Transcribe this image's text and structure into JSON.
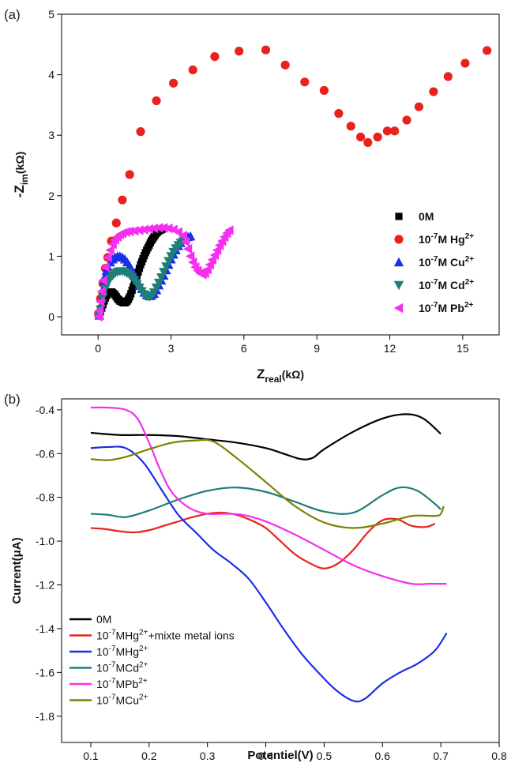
{
  "chart_data": [
    {
      "panel_label": "(a)",
      "type": "scatter",
      "xlabel": {
        "main": "Z",
        "sub": "real",
        "unit": "(kΩ)"
      },
      "ylabel": {
        "main": "-Z",
        "sub": "im",
        "unit": "(kΩ)"
      },
      "xlim": [
        -1.5,
        16.5
      ],
      "ylim": [
        -0.3,
        5
      ],
      "xticks": [
        "0",
        "3",
        "6",
        "9",
        "12",
        "15"
      ],
      "xtick_values": [
        0,
        3,
        6,
        9,
        12,
        15
      ],
      "yticks": [
        "0",
        "1",
        "2",
        "3",
        "4",
        "5"
      ],
      "ytick_values": [
        0,
        1,
        2,
        3,
        4,
        5
      ],
      "legend_position": "center-right",
      "series": [
        {
          "name": "0M",
          "name_prefix": "0M",
          "name_sup": "",
          "name_suffix": "",
          "marker": "square",
          "color": "#000000",
          "x": [
            0.05,
            0.1,
            0.15,
            0.2,
            0.25,
            0.3,
            0.35,
            0.4,
            0.45,
            0.5,
            0.55,
            0.6,
            0.65,
            0.7,
            0.75,
            0.8,
            0.85,
            0.9,
            0.95,
            1.0,
            1.05,
            1.1,
            1.15,
            1.2,
            1.25,
            1.3,
            1.35,
            1.4,
            1.45,
            1.5,
            1.55,
            1.6,
            1.65,
            1.7,
            1.75,
            1.8,
            1.85,
            1.9,
            1.95,
            2.0,
            2.05,
            2.1,
            2.15,
            2.2,
            2.25,
            2.3,
            2.35,
            2.4,
            2.45,
            2.5,
            2.55,
            2.6,
            2.65
          ],
          "y": [
            0.02,
            0.08,
            0.14,
            0.2,
            0.26,
            0.31,
            0.35,
            0.38,
            0.4,
            0.41,
            0.41,
            0.4,
            0.38,
            0.36,
            0.33,
            0.3,
            0.28,
            0.26,
            0.25,
            0.24,
            0.23,
            0.23,
            0.24,
            0.26,
            0.29,
            0.33,
            0.38,
            0.44,
            0.5,
            0.56,
            0.62,
            0.68,
            0.74,
            0.8,
            0.86,
            0.91,
            0.96,
            1.01,
            1.06,
            1.1,
            1.14,
            1.18,
            1.22,
            1.26,
            1.29,
            1.32,
            1.35,
            1.38,
            1.4,
            1.42,
            1.43,
            1.44,
            1.45
          ]
        },
        {
          "name": "10-7M Hg2+",
          "name_prefix": "10",
          "name_sup": "-7",
          "name_suffix": "M Hg",
          "name_sup2": "2+",
          "marker": "circle",
          "color": "#e8231d",
          "x": [
            0.02,
            0.1,
            0.2,
            0.3,
            0.4,
            0.55,
            0.75,
            1.0,
            1.3,
            1.75,
            2.4,
            3.1,
            3.9,
            4.8,
            5.8,
            6.9,
            7.7,
            8.5,
            9.3,
            9.9,
            10.4,
            10.8,
            11.1,
            11.5,
            11.9,
            12.2,
            12.7,
            13.2,
            13.8,
            14.4,
            15.1,
            16.0
          ],
          "y": [
            0.05,
            0.3,
            0.55,
            0.8,
            0.98,
            1.25,
            1.55,
            1.93,
            2.35,
            3.06,
            3.57,
            3.86,
            4.08,
            4.3,
            4.39,
            4.41,
            4.16,
            3.88,
            3.74,
            3.36,
            3.15,
            2.97,
            2.88,
            2.97,
            3.07,
            3.07,
            3.25,
            3.47,
            3.72,
            3.97,
            4.19,
            4.4
          ]
        },
        {
          "name": "10-7M Cu2+",
          "name_prefix": "10",
          "name_sup": "-7",
          "name_suffix": "M Cu",
          "name_sup2": "2+",
          "marker": "triangle-up",
          "color": "#1a2fe8",
          "x": [
            0.05,
            0.1,
            0.15,
            0.2,
            0.25,
            0.3,
            0.35,
            0.4,
            0.5,
            0.6,
            0.7,
            0.8,
            0.9,
            1.0,
            1.1,
            1.2,
            1.3,
            1.4,
            1.5,
            1.6,
            1.7,
            1.8,
            1.9,
            2.0,
            2.1,
            2.2,
            2.3,
            2.4,
            2.5,
            2.6,
            2.7,
            2.8,
            2.9,
            3.0,
            3.1,
            3.2,
            3.3,
            3.4,
            3.5,
            3.6,
            3.7,
            3.8
          ],
          "y": [
            0.02,
            0.15,
            0.3,
            0.45,
            0.58,
            0.68,
            0.76,
            0.82,
            0.9,
            0.95,
            0.98,
            1.0,
            1.0,
            0.98,
            0.95,
            0.9,
            0.84,
            0.76,
            0.68,
            0.6,
            0.52,
            0.46,
            0.4,
            0.36,
            0.34,
            0.35,
            0.38,
            0.44,
            0.52,
            0.6,
            0.68,
            0.77,
            0.86,
            0.95,
            1.03,
            1.1,
            1.17,
            1.22,
            1.27,
            1.3,
            1.32,
            1.33
          ]
        },
        {
          "name": "10-7M Cd2+",
          "name_prefix": "10",
          "name_sup": "-7",
          "name_suffix": "M Cd",
          "name_sup2": "2+",
          "marker": "triangle-down",
          "color": "#1f7f78",
          "x": [
            0.05,
            0.1,
            0.15,
            0.2,
            0.3,
            0.4,
            0.5,
            0.6,
            0.7,
            0.8,
            0.9,
            1.0,
            1.1,
            1.2,
            1.3,
            1.4,
            1.5,
            1.6,
            1.7,
            1.8,
            1.9,
            2.0,
            2.1,
            2.2,
            2.3,
            2.4,
            2.5,
            2.6,
            2.7,
            2.8,
            2.9,
            3.0,
            3.1,
            3.2,
            3.3,
            3.4,
            3.5
          ],
          "y": [
            0.02,
            0.12,
            0.22,
            0.32,
            0.46,
            0.56,
            0.63,
            0.68,
            0.72,
            0.74,
            0.75,
            0.75,
            0.74,
            0.72,
            0.69,
            0.65,
            0.6,
            0.54,
            0.48,
            0.42,
            0.37,
            0.34,
            0.33,
            0.35,
            0.4,
            0.48,
            0.56,
            0.65,
            0.74,
            0.83,
            0.92,
            1.0,
            1.07,
            1.13,
            1.18,
            1.22,
            1.25
          ]
        },
        {
          "name": "10-7M Pb2+",
          "name_prefix": "10",
          "name_sup": "-7",
          "name_suffix": "M Pb",
          "name_sup2": "2+",
          "marker": "triangle-left",
          "color": "#f52ef0",
          "x": [
            0.02,
            0.05,
            0.1,
            0.15,
            0.2,
            0.3,
            0.4,
            0.5,
            0.6,
            0.7,
            0.8,
            0.9,
            1.0,
            1.15,
            1.3,
            1.5,
            1.7,
            1.9,
            2.1,
            2.3,
            2.5,
            2.7,
            2.9,
            3.1,
            3.3,
            3.5,
            3.6,
            3.7,
            3.8,
            3.9,
            4.0,
            4.1,
            4.2,
            4.3,
            4.4,
            4.5,
            4.6,
            4.7,
            4.8,
            4.9,
            5.0,
            5.1,
            5.2,
            5.3,
            5.4
          ],
          "y": [
            0.0,
            0.1,
            0.25,
            0.42,
            0.6,
            0.82,
            0.98,
            1.1,
            1.2,
            1.27,
            1.32,
            1.36,
            1.38,
            1.4,
            1.41,
            1.42,
            1.43,
            1.44,
            1.45,
            1.46,
            1.47,
            1.47,
            1.46,
            1.44,
            1.4,
            1.34,
            1.24,
            1.12,
            1.0,
            0.9,
            0.82,
            0.76,
            0.72,
            0.7,
            0.72,
            0.78,
            0.86,
            0.94,
            1.02,
            1.1,
            1.18,
            1.25,
            1.32,
            1.38,
            1.43
          ]
        }
      ]
    },
    {
      "panel_label": "(b)",
      "type": "line",
      "xlabel": "Potentiel(V)",
      "ylabel": "Current(μA)",
      "xlim": [
        0.05,
        0.8
      ],
      "ylim": [
        -1.92,
        -0.35
      ],
      "xticks": [
        "0.1",
        "0.2",
        "0.3",
        "0.4",
        "0.5",
        "0.6",
        "0.7",
        "0.8"
      ],
      "xtick_values": [
        0.1,
        0.2,
        0.3,
        0.4,
        0.5,
        0.6,
        0.7,
        0.8
      ],
      "yticks": [
        "-0.4",
        "-0.6",
        "-0.8",
        "-1.0",
        "-1.2",
        "-1.4",
        "-1.6",
        "-1.8"
      ],
      "ytick_values": [
        -0.4,
        -0.6,
        -0.8,
        -1.0,
        -1.2,
        -1.4,
        -1.6,
        -1.8
      ],
      "legend_position": "bottom-left",
      "series": [
        {
          "name": "0M",
          "name_prefix": "0M",
          "name_sup": "",
          "name_suffix": "",
          "color": "#000000",
          "x": [
            0.1,
            0.15,
            0.2,
            0.25,
            0.3,
            0.35,
            0.4,
            0.43,
            0.46,
            0.48,
            0.5,
            0.55,
            0.6,
            0.64,
            0.67,
            0.7
          ],
          "y": [
            -0.505,
            -0.515,
            -0.515,
            -0.52,
            -0.535,
            -0.55,
            -0.575,
            -0.6,
            -0.625,
            -0.62,
            -0.58,
            -0.5,
            -0.44,
            -0.42,
            -0.44,
            -0.51
          ]
        },
        {
          "name": "10-7MHg2++mixte metal ions",
          "name_prefix": "10",
          "name_sup": "-7",
          "name_suffix": "MHg",
          "name_sup2": "2+",
          "name_suffix2": "+mixte metal ions",
          "color": "#e8231d",
          "x": [
            0.1,
            0.125,
            0.15,
            0.175,
            0.2,
            0.225,
            0.25,
            0.275,
            0.3,
            0.325,
            0.35,
            0.375,
            0.4,
            0.425,
            0.45,
            0.475,
            0.5,
            0.525,
            0.55,
            0.575,
            0.6,
            0.625,
            0.65,
            0.675,
            0.69
          ],
          "y": [
            -0.94,
            -0.945,
            -0.955,
            -0.96,
            -0.95,
            -0.93,
            -0.91,
            -0.89,
            -0.875,
            -0.87,
            -0.88,
            -0.905,
            -0.94,
            -1.0,
            -1.06,
            -1.1,
            -1.125,
            -1.1,
            -1.04,
            -0.96,
            -0.905,
            -0.9,
            -0.93,
            -0.935,
            -0.92
          ]
        },
        {
          "name": "10-7MHg2+",
          "name_prefix": "10",
          "name_sup": "-7",
          "name_suffix": "MHg",
          "name_sup2": "2+",
          "color": "#1a2fe8",
          "x": [
            0.1,
            0.13,
            0.16,
            0.19,
            0.22,
            0.25,
            0.28,
            0.31,
            0.34,
            0.37,
            0.4,
            0.43,
            0.46,
            0.49,
            0.52,
            0.55,
            0.57,
            0.6,
            0.63,
            0.66,
            0.69,
            0.71
          ],
          "y": [
            -0.575,
            -0.57,
            -0.575,
            -0.64,
            -0.76,
            -0.88,
            -0.96,
            -1.04,
            -1.1,
            -1.17,
            -1.28,
            -1.4,
            -1.51,
            -1.6,
            -1.68,
            -1.73,
            -1.72,
            -1.65,
            -1.6,
            -1.56,
            -1.5,
            -1.42
          ]
        },
        {
          "name": "10-7MCd2+",
          "name_prefix": "10",
          "name_sup": "-7",
          "name_suffix": "MCd",
          "name_sup2": "2+",
          "color": "#1f7f78",
          "x": [
            0.1,
            0.13,
            0.16,
            0.2,
            0.25,
            0.3,
            0.35,
            0.4,
            0.45,
            0.5,
            0.55,
            0.6,
            0.63,
            0.66,
            0.69,
            0.7
          ],
          "y": [
            -0.875,
            -0.88,
            -0.89,
            -0.86,
            -0.81,
            -0.77,
            -0.755,
            -0.775,
            -0.82,
            -0.865,
            -0.87,
            -0.79,
            -0.755,
            -0.77,
            -0.83,
            -0.855
          ]
        },
        {
          "name": "10-7MPb2+",
          "name_prefix": "10",
          "name_sup": "-7",
          "name_suffix": "MPb",
          "name_sup2": "2+",
          "color": "#f52ef0",
          "x": [
            0.1,
            0.13,
            0.16,
            0.18,
            0.2,
            0.22,
            0.24,
            0.27,
            0.3,
            0.33,
            0.36,
            0.4,
            0.45,
            0.5,
            0.55,
            0.6,
            0.65,
            0.68,
            0.71
          ],
          "y": [
            -0.39,
            -0.39,
            -0.4,
            -0.44,
            -0.55,
            -0.68,
            -0.78,
            -0.85,
            -0.875,
            -0.875,
            -0.88,
            -0.91,
            -0.97,
            -1.04,
            -1.11,
            -1.16,
            -1.195,
            -1.195,
            -1.195
          ]
        },
        {
          "name": "10-7MCu2+",
          "name_prefix": "10",
          "name_sup": "-7",
          "name_suffix": "MCu",
          "name_sup2": "2+",
          "color": "#808000",
          "x": [
            0.1,
            0.13,
            0.16,
            0.2,
            0.24,
            0.28,
            0.31,
            0.35,
            0.4,
            0.45,
            0.5,
            0.55,
            0.6,
            0.65,
            0.69,
            0.7,
            0.705
          ],
          "y": [
            -0.625,
            -0.63,
            -0.615,
            -0.58,
            -0.55,
            -0.54,
            -0.545,
            -0.62,
            -0.73,
            -0.84,
            -0.915,
            -0.94,
            -0.92,
            -0.885,
            -0.885,
            -0.875,
            -0.84
          ]
        }
      ]
    }
  ]
}
